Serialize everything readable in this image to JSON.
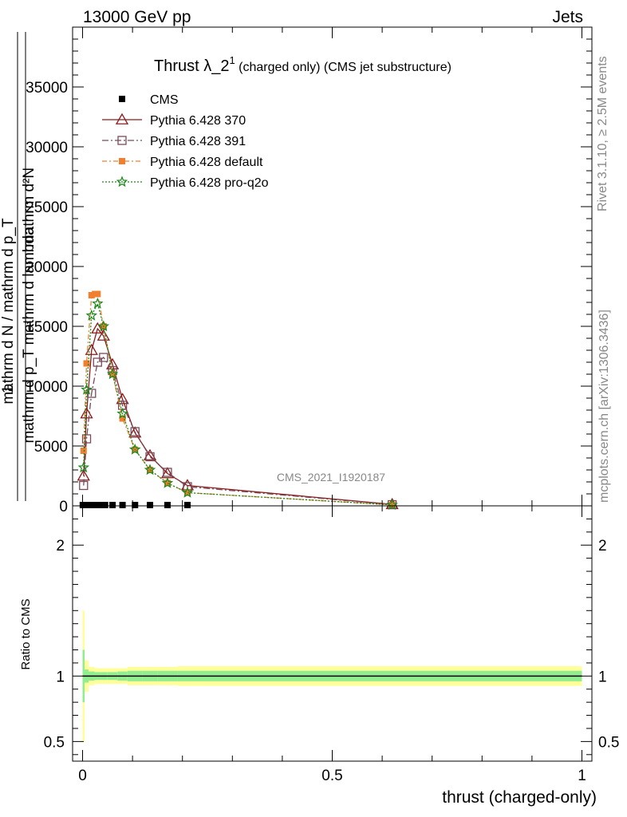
{
  "header": {
    "left": "13000 GeV pp",
    "right": "Jets"
  },
  "side_labels": {
    "rivet": "Rivet 3.1.10, ≥ 2.5M events",
    "mcplots": "mcplots.cern.ch [arXiv:1306.3436]"
  },
  "watermark": "CMS_2021_I1920187",
  "chart_data": [
    {
      "type": "line",
      "title_main": "Thrust λ_2",
      "title_sup": "1",
      "title_rest": " (charged only) (CMS jet substructure)",
      "ylabel_lines": [
        "mathrm d²N",
        "mathrm d p_T mathrm d lambda",
        "1",
        "mathrm d N / mathrm d p_T"
      ],
      "xlim": [
        -0.02,
        1.02
      ],
      "ylim": [
        0,
        40000
      ],
      "yticks": [
        {
          "v": 0,
          "label": "0"
        },
        {
          "v": 5000,
          "label": "5000"
        },
        {
          "v": 10000,
          "label": "10000"
        },
        {
          "v": 15000,
          "label": "15000"
        },
        {
          "v": 20000,
          "label": "20000"
        },
        {
          "v": 25000,
          "label": "25000"
        },
        {
          "v": 30000,
          "label": "30000"
        },
        {
          "v": 35000,
          "label": "35000"
        }
      ],
      "legend": {
        "placement": "top-left",
        "entries": [
          {
            "key": "cms",
            "label": "CMS"
          },
          {
            "key": "p370",
            "label": "Pythia 6.428 370"
          },
          {
            "key": "p391",
            "label": "Pythia 6.428 391"
          },
          {
            "key": "pdef",
            "label": "Pythia 6.428 default"
          },
          {
            "key": "pq2o",
            "label": "Pythia 6.428 pro-q2o"
          }
        ]
      },
      "cms_x": [
        0.0005,
        0.002,
        0.005,
        0.009,
        0.014,
        0.02,
        0.027,
        0.035,
        0.045,
        0.06,
        0.08,
        0.105,
        0.135,
        0.17,
        0.21
      ],
      "cms_y": [
        0,
        0,
        0,
        0,
        0,
        0,
        0,
        0,
        0,
        0,
        0,
        0,
        0,
        0,
        0
      ],
      "series": [
        {
          "key": "p370",
          "name": "Pythia 6.428 370",
          "color": "#8b1a1a",
          "marker": "triangle",
          "dash": "",
          "x": [
            0.002,
            0.008,
            0.018,
            0.03,
            0.042,
            0.06,
            0.08,
            0.105,
            0.135,
            0.17,
            0.21,
            0.62
          ],
          "y": [
            2500,
            7700,
            13000,
            14800,
            14200,
            11800,
            8900,
            6100,
            4200,
            2700,
            1700,
            120
          ]
        },
        {
          "key": "p391",
          "name": "Pythia 6.428 391",
          "color": "#7a4a5a",
          "marker": "square-open",
          "dash": "8,3,2,3",
          "x": [
            0.002,
            0.008,
            0.018,
            0.03,
            0.042,
            0.06,
            0.08,
            0.105,
            0.135,
            0.17,
            0.21,
            0.62
          ],
          "y": [
            1700,
            5600,
            9400,
            12000,
            12400,
            11300,
            8400,
            6200,
            4100,
            2800,
            1600,
            100
          ]
        },
        {
          "key": "pdef",
          "name": "Pythia 6.428 default",
          "color": "#f08030",
          "marker": "square-filled",
          "dash": "6,3,2,3",
          "x": [
            0.002,
            0.008,
            0.018,
            0.025,
            0.03,
            0.042,
            0.06,
            0.08,
            0.105,
            0.135,
            0.17,
            0.21,
            0.62
          ],
          "y": [
            4600,
            11900,
            17600,
            17700,
            17700,
            15000,
            11000,
            7300,
            4700,
            3000,
            1900,
            1100,
            80
          ]
        },
        {
          "key": "pq2o",
          "name": "Pythia 6.428 pro-q2o",
          "color": "#1a8a1a",
          "marker": "star",
          "dash": "2,2",
          "x": [
            0.002,
            0.008,
            0.018,
            0.03,
            0.042,
            0.06,
            0.08,
            0.105,
            0.135,
            0.17,
            0.21,
            0.62
          ],
          "y": [
            3200,
            9700,
            15900,
            16900,
            15000,
            11000,
            7700,
            4700,
            3000,
            1900,
            1100,
            80
          ]
        }
      ]
    },
    {
      "type": "area",
      "ylabel": "Ratio to CMS",
      "xlabel": "thrust (charged-only)",
      "xlim": [
        -0.02,
        1.02
      ],
      "ylim": [
        0.35,
        2.3
      ],
      "yticks": [
        {
          "v": 0.5,
          "label": "0.5"
        },
        {
          "v": 1,
          "label": "1"
        },
        {
          "v": 2,
          "label": "2"
        }
      ],
      "xticks": [
        {
          "v": 0,
          "label": "0"
        },
        {
          "v": 0.5,
          "label": "0.5"
        },
        {
          "v": 1,
          "label": "1"
        }
      ],
      "reference": 1,
      "bands": {
        "edges": [
          0,
          0.004,
          0.012,
          0.024,
          0.036,
          0.05,
          0.07,
          0.09,
          0.12,
          0.15,
          0.19,
          0.23,
          1.0
        ],
        "yellow_half": [
          0.5,
          0.12,
          0.07,
          0.06,
          0.06,
          0.06,
          0.06,
          0.07,
          0.07,
          0.07,
          0.075,
          0.075
        ],
        "green_half": [
          0.2,
          0.05,
          0.035,
          0.03,
          0.03,
          0.03,
          0.035,
          0.04,
          0.04,
          0.04,
          0.04,
          0.04
        ],
        "yellow_color": "#ffff99",
        "green_color": "#90ee90"
      }
    }
  ]
}
